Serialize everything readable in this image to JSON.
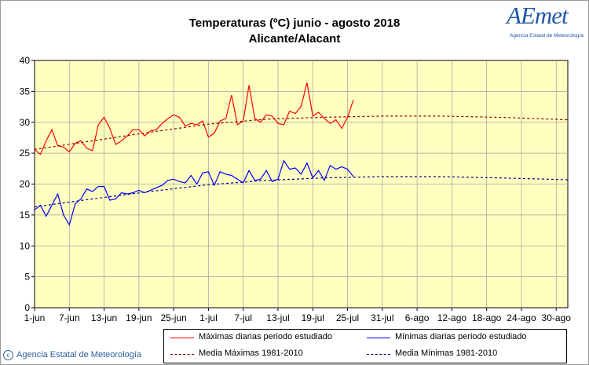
{
  "header": {
    "title_line1": "Temperaturas (ºC) junio - agosto 2018",
    "title_line2": "Alicante/Alacant"
  },
  "logo": {
    "text": "AEmet",
    "subtitle": "Agencia Estatal de Meteorología"
  },
  "footer": {
    "copyright_symbol": "c",
    "copyright": "Agencia Estatal de Meteorología"
  },
  "legend": {
    "max_daily": "Máximas diarias periodo estudiado",
    "min_daily": "Mínimas diarias periodo estudiado",
    "mean_max": "Media Máximas 1981-2010",
    "mean_min": "Media Mínimas 1981-2010"
  },
  "colors": {
    "max": "#ff0000",
    "min": "#0000ff",
    "mean_max": "#8b0000",
    "mean_min": "#00008b",
    "plot_background": "#ffffc0",
    "grid": "#a0a0a0",
    "brand": "#1f57a4"
  },
  "chart_data": {
    "type": "line",
    "title": "Temperaturas (ºC) junio - agosto 2018",
    "subtitle": "Alicante/Alacant",
    "x_unit": "day index starting 1-jun",
    "x_ticks": [
      "1-jun",
      "7-jun",
      "13-jun",
      "19-jun",
      "25-jun",
      "1-jul",
      "7-jul",
      "13-jul",
      "19-jul",
      "25-jul",
      "31-jul",
      "6-ago",
      "12-ago",
      "18-ago",
      "24-ago",
      "30-ago"
    ],
    "x_tick_days": [
      0,
      6,
      12,
      18,
      24,
      30,
      36,
      42,
      48,
      54,
      60,
      66,
      72,
      78,
      84,
      90
    ],
    "xlim": [
      0,
      92
    ],
    "ylim": [
      0,
      40
    ],
    "y_ticks": [
      0,
      5,
      10,
      15,
      20,
      25,
      30,
      35,
      40
    ],
    "grid": true,
    "legend_position": "bottom",
    "series": [
      {
        "name": "Máximas diarias periodo estudiado",
        "color": "#ff0000",
        "dash": false,
        "y": [
          25.6,
          24.8,
          27.0,
          28.8,
          26.2,
          26.0,
          25.2,
          26.6,
          27.0,
          25.8,
          25.4,
          29.6,
          30.8,
          29.0,
          26.4,
          27.0,
          27.8,
          28.8,
          28.8,
          27.8,
          28.6,
          28.8,
          29.8,
          30.6,
          31.2,
          30.8,
          29.4,
          29.8,
          29.6,
          30.2,
          27.6,
          28.2,
          30.2,
          30.6,
          34.4,
          29.6,
          30.2,
          36.0,
          30.6,
          30.0,
          31.2,
          31.0,
          29.8,
          29.6,
          31.8,
          31.4,
          32.6,
          36.4,
          31.0,
          31.6,
          30.6,
          29.8,
          30.4,
          29.0,
          30.8,
          33.6
        ]
      },
      {
        "name": "Mínimas diarias periodo estudiado",
        "color": "#0000ff",
        "dash": false,
        "y": [
          15.8,
          16.6,
          14.8,
          16.6,
          18.4,
          15.0,
          13.4,
          16.8,
          17.6,
          19.2,
          18.8,
          19.6,
          19.6,
          17.4,
          17.6,
          18.6,
          18.4,
          18.6,
          19.0,
          18.6,
          19.0,
          19.4,
          19.8,
          20.6,
          20.8,
          20.4,
          20.2,
          21.4,
          20.0,
          21.8,
          22.0,
          19.8,
          22.0,
          21.6,
          21.4,
          20.8,
          20.2,
          22.2,
          20.6,
          20.8,
          22.2,
          20.4,
          20.8,
          23.8,
          22.4,
          22.6,
          21.6,
          23.4,
          21.0,
          22.2,
          20.6,
          23.0,
          22.4,
          22.8,
          22.4,
          21.2
        ]
      },
      {
        "name": "Media Máximas 1981-2010",
        "color": "#8b0000",
        "dash": true,
        "x": [
          0,
          10,
          20,
          30,
          40,
          50,
          60,
          70,
          80,
          92
        ],
        "y": [
          25.6,
          27.0,
          28.4,
          29.7,
          30.5,
          30.8,
          31.0,
          31.0,
          30.8,
          30.4
        ]
      },
      {
        "name": "Media Mínimas 1981-2010",
        "color": "#00008b",
        "dash": true,
        "x": [
          0,
          10,
          20,
          30,
          40,
          50,
          60,
          70,
          80,
          92
        ],
        "y": [
          16.3,
          17.6,
          18.8,
          19.9,
          20.6,
          21.0,
          21.2,
          21.2,
          21.0,
          20.7
        ]
      }
    ]
  }
}
